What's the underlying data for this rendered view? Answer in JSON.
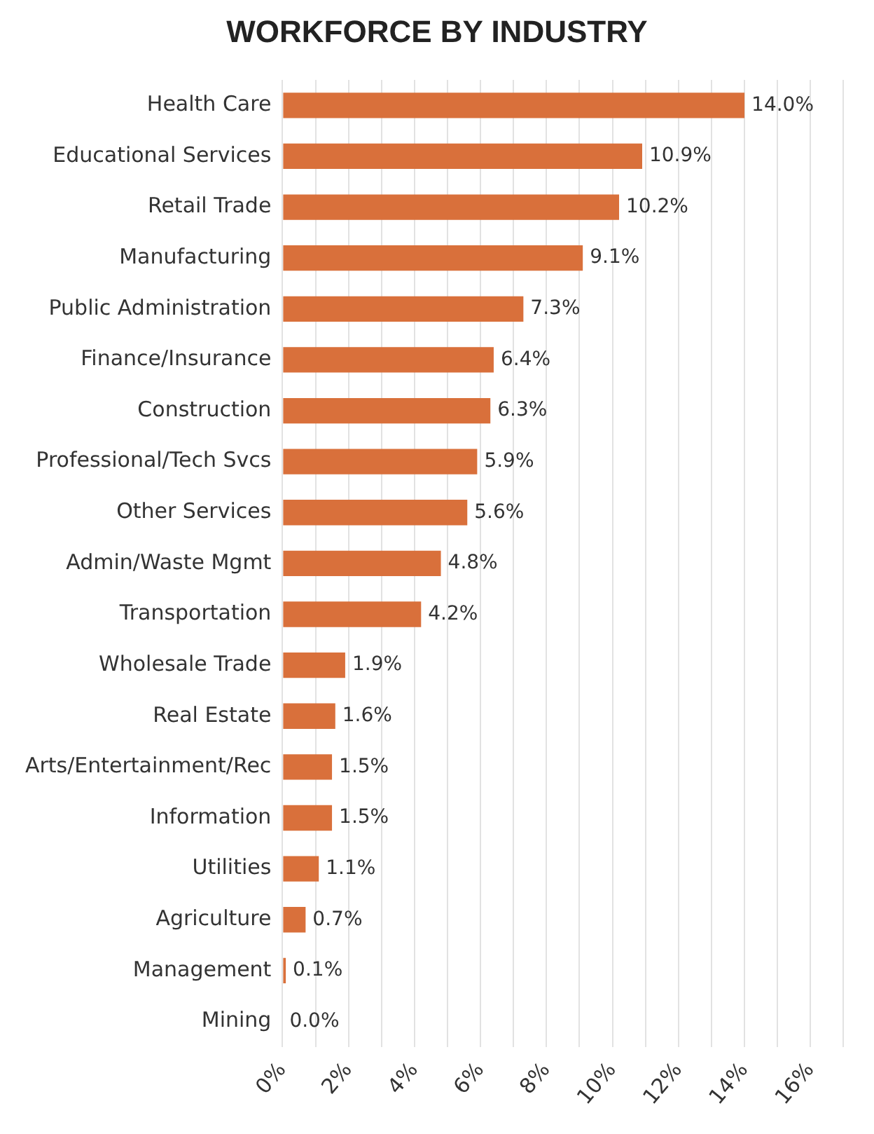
{
  "chart_data": {
    "type": "bar",
    "orientation": "horizontal",
    "title": "WORKFORCE BY INDUSTRY",
    "categories": [
      "Health Care",
      "Educational Services",
      "Retail Trade",
      "Manufacturing",
      "Public Administration",
      "Finance/Insurance",
      "Construction",
      "Professional/Tech Svcs",
      "Other Services",
      "Admin/Waste Mgmt",
      "Transportation",
      "Wholesale Trade",
      "Real Estate",
      "Arts/Entertainment/Rec",
      "Information",
      "Utilities",
      "Agriculture",
      "Management",
      "Mining"
    ],
    "values": [
      14.0,
      10.9,
      10.2,
      9.1,
      7.3,
      6.4,
      6.3,
      5.9,
      5.6,
      4.8,
      4.2,
      1.9,
      1.6,
      1.5,
      1.5,
      1.1,
      0.7,
      0.1,
      0.0
    ],
    "value_labels": [
      "14.0%",
      "10.9%",
      "10.2%",
      "9.1%",
      "7.3%",
      "6.4%",
      "6.3%",
      "5.9%",
      "5.6%",
      "4.8%",
      "4.2%",
      "1.9%",
      "1.6%",
      "1.5%",
      "1.5%",
      "1.1%",
      "0.7%",
      "0.1%",
      "0.0%"
    ],
    "color": "#d9703b",
    "xlim": [
      0,
      17
    ],
    "xticks": [
      {
        "value": 0,
        "label": "0%"
      },
      {
        "value": 1,
        "label": null
      },
      {
        "value": 2,
        "label": "2%"
      },
      {
        "value": 3,
        "label": null
      },
      {
        "value": 4,
        "label": "4%"
      },
      {
        "value": 5,
        "label": null
      },
      {
        "value": 6,
        "label": "6%"
      },
      {
        "value": 7,
        "label": null
      },
      {
        "value": 8,
        "label": "8%"
      },
      {
        "value": 9,
        "label": null
      },
      {
        "value": 10,
        "label": "10%"
      },
      {
        "value": 11,
        "label": null
      },
      {
        "value": 12,
        "label": "12%"
      },
      {
        "value": 13,
        "label": null
      },
      {
        "value": 14,
        "label": "14%"
      },
      {
        "value": 15,
        "label": null
      },
      {
        "value": 16,
        "label": "16%"
      },
      {
        "value": 17,
        "label": null
      }
    ],
    "grid": "x",
    "legend": false
  }
}
